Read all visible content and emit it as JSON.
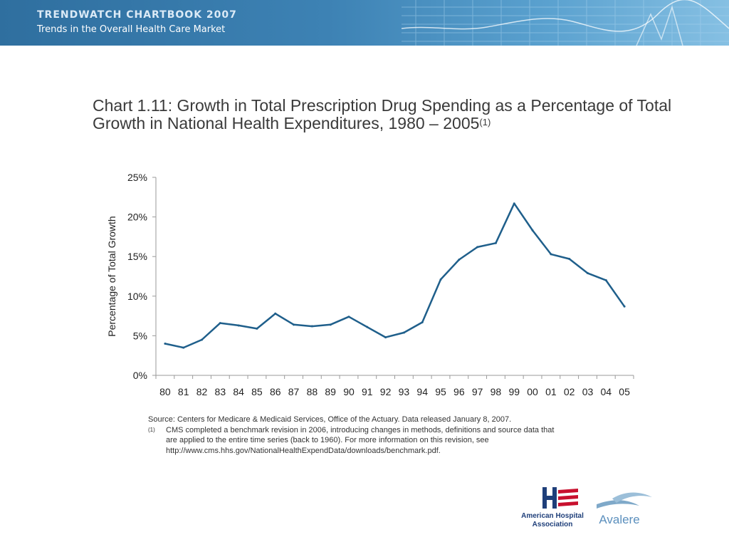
{
  "header": {
    "title": "TRENDWATCH CHARTBOOK 2007",
    "subtitle": "Trends in the Overall Health Care Market"
  },
  "chart_title": {
    "text": "Chart 1.11: Growth in Total Prescription Drug Spending as a Percentage of Total Growth in National Health Expenditures, 1980 – 2005",
    "superscript": "(1)"
  },
  "chart_data": {
    "type": "line",
    "ylabel": "Percentage of Total Growth",
    "ylim": [
      0,
      25
    ],
    "yticks": [
      "0%",
      "5%",
      "10%",
      "15%",
      "20%",
      "25%"
    ],
    "categories": [
      "80",
      "81",
      "82",
      "83",
      "84",
      "85",
      "86",
      "87",
      "88",
      "89",
      "90",
      "91",
      "92",
      "93",
      "94",
      "95",
      "96",
      "97",
      "98",
      "99",
      "00",
      "01",
      "02",
      "03",
      "04",
      "05"
    ],
    "series": [
      {
        "color": "#1f5f8b",
        "values": [
          4.0,
          3.5,
          4.5,
          6.6,
          6.3,
          5.9,
          7.8,
          6.4,
          6.2,
          6.4,
          7.4,
          6.1,
          4.8,
          5.4,
          6.7,
          12.1,
          14.6,
          16.2,
          16.7,
          21.7,
          18.3,
          15.3,
          14.7,
          12.9,
          12.0,
          8.7
        ]
      }
    ],
    "grid": false
  },
  "notes": {
    "source": "Source:  Centers for Medicare & Medicaid Services, Office of the Actuary.  Data released January 8, 2007.",
    "footnote_marker": "(1)",
    "footnote_lines": [
      "CMS completed a benchmark revision in 2006, introducing changes in methods, definitions and source data that",
      "are applied to the entire time series (back to 1960).  For more information on this revision, see",
      "http://www.cms.hhs.gov/NationalHealthExpendData/downloads/benchmark.pdf."
    ]
  },
  "logos": {
    "aha_line1": "American Hospital",
    "aha_line2": "Association",
    "avalere": "Avalere"
  }
}
